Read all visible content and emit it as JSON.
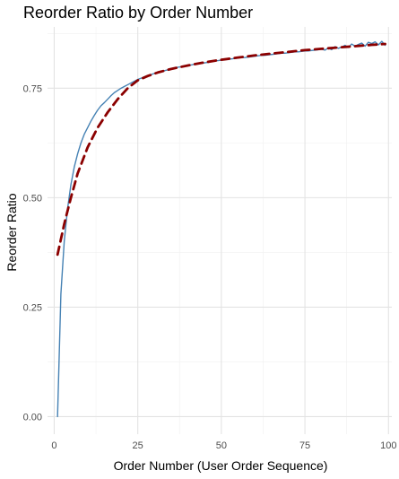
{
  "chart_data": {
    "type": "line",
    "title": "Reorder Ratio by Order Number",
    "xlabel": "Order Number (User Order Sequence)",
    "ylabel": "Reorder Ratio",
    "xlim": [
      -2,
      101
    ],
    "ylim": [
      -0.04,
      0.89
    ],
    "x_ticks": [
      0,
      25,
      50,
      75,
      100
    ],
    "y_ticks": [
      0,
      0.25,
      0.5,
      0.75
    ],
    "x_tick_labels": [
      "0",
      "25",
      "50",
      "75",
      "100"
    ],
    "y_tick_labels": [
      "0.00",
      "0.25",
      "0.50",
      "0.75"
    ],
    "grid": true,
    "legend": "none",
    "series": [
      {
        "style": "solid",
        "color": "#4682b4",
        "x": [
          1,
          2,
          3,
          4,
          5,
          6,
          7,
          8,
          9,
          10,
          11,
          12,
          13,
          14,
          15,
          16,
          17,
          18,
          19,
          20,
          21,
          22,
          23,
          24,
          25,
          26,
          27,
          28,
          29,
          30,
          31,
          32,
          33,
          34,
          35,
          36,
          37,
          38,
          39,
          40,
          41,
          42,
          43,
          44,
          45,
          46,
          47,
          48,
          49,
          50,
          51,
          52,
          53,
          54,
          55,
          56,
          57,
          58,
          59,
          60,
          61,
          62,
          63,
          64,
          65,
          66,
          67,
          68,
          69,
          70,
          71,
          72,
          73,
          74,
          75,
          76,
          77,
          78,
          79,
          80,
          81,
          82,
          83,
          84,
          85,
          86,
          87,
          88,
          89,
          90,
          91,
          92,
          93,
          94,
          95,
          96,
          97,
          98,
          99
        ],
        "y": [
          0.0,
          0.28,
          0.4,
          0.475,
          0.53,
          0.57,
          0.6,
          0.625,
          0.645,
          0.66,
          0.675,
          0.688,
          0.7,
          0.71,
          0.717,
          0.725,
          0.733,
          0.74,
          0.745,
          0.75,
          0.754,
          0.758,
          0.762,
          0.766,
          0.77,
          0.773,
          0.776,
          0.779,
          0.781,
          0.784,
          0.786,
          0.788,
          0.79,
          0.792,
          0.794,
          0.796,
          0.798,
          0.799,
          0.801,
          0.802,
          0.803,
          0.805,
          0.806,
          0.807,
          0.808,
          0.809,
          0.811,
          0.812,
          0.813,
          0.814,
          0.815,
          0.816,
          0.817,
          0.818,
          0.819,
          0.82,
          0.82,
          0.821,
          0.822,
          0.823,
          0.824,
          0.825,
          0.825,
          0.826,
          0.827,
          0.828,
          0.829,
          0.83,
          0.83,
          0.831,
          0.832,
          0.833,
          0.833,
          0.834,
          0.835,
          0.835,
          0.836,
          0.837,
          0.838,
          0.839,
          0.837,
          0.842,
          0.838,
          0.845,
          0.841,
          0.844,
          0.848,
          0.843,
          0.851,
          0.846,
          0.85,
          0.853,
          0.846,
          0.855,
          0.852,
          0.856,
          0.849,
          0.857,
          0.848
        ]
      },
      {
        "style": "dashed",
        "color": "#8b0000",
        "x": [
          1,
          3,
          5,
          7,
          10,
          13,
          16,
          19,
          22,
          25,
          28,
          31,
          35,
          40,
          45,
          50,
          55,
          60,
          65,
          70,
          75,
          80,
          85,
          90,
          95,
          99
        ],
        "y": [
          0.37,
          0.44,
          0.5,
          0.555,
          0.615,
          0.66,
          0.695,
          0.725,
          0.75,
          0.768,
          0.778,
          0.786,
          0.794,
          0.802,
          0.809,
          0.815,
          0.82,
          0.825,
          0.829,
          0.833,
          0.837,
          0.84,
          0.843,
          0.846,
          0.849,
          0.851
        ]
      }
    ]
  }
}
